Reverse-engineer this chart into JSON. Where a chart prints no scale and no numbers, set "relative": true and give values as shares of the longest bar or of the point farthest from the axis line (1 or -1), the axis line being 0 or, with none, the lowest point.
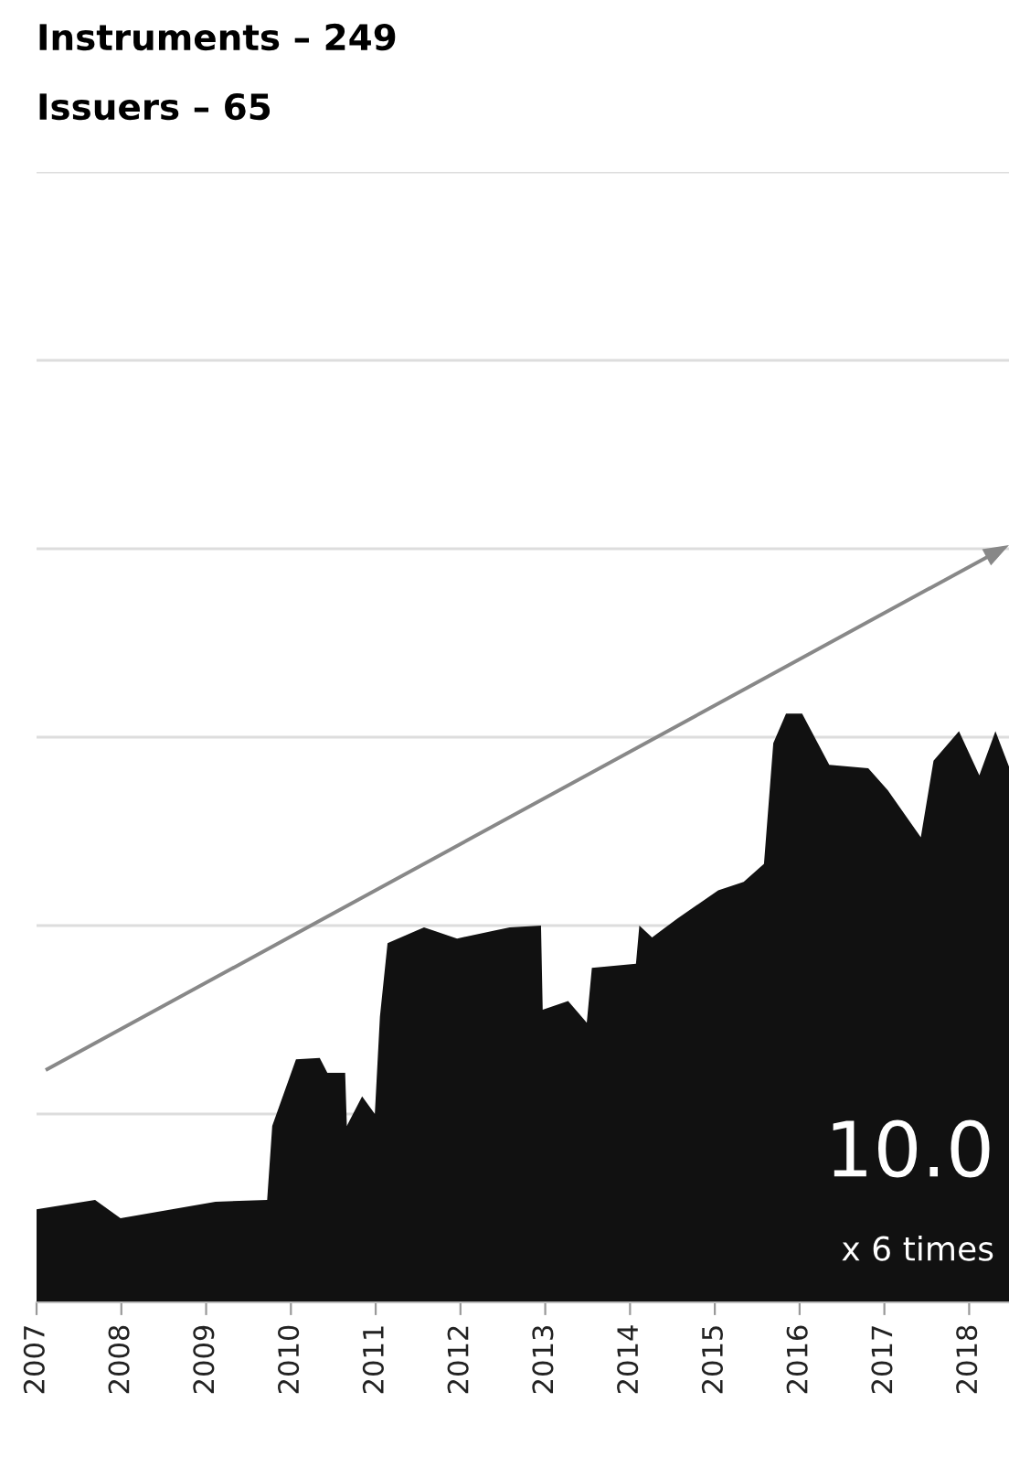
{
  "chart_data": {
    "type": "area",
    "title": "Instruments – 249",
    "subtitle": "Issuers – 65",
    "relative": true,
    "color": "#111111",
    "x": [
      2007.0,
      2007.69,
      2007.99,
      2009.11,
      2009.72,
      2009.78,
      2010.06,
      2010.34,
      2010.43,
      2010.64,
      2010.66,
      2010.84,
      2010.99,
      2011.05,
      2011.14,
      2011.57,
      2011.96,
      2012.58,
      2012.95,
      2012.97,
      2013.27,
      2013.49,
      2013.55,
      2014.07,
      2014.11,
      2014.26,
      2014.56,
      2015.04,
      2015.34,
      2015.58,
      2015.69,
      2015.84,
      2016.03,
      2016.35,
      2016.81,
      2017.04,
      2017.43,
      2017.58,
      2017.88,
      2018.12,
      2018.31,
      2018.47
    ],
    "values": [
      0.158,
      0.174,
      0.143,
      0.171,
      0.174,
      0.3,
      0.413,
      0.415,
      0.39,
      0.39,
      0.3,
      0.35,
      0.32,
      0.485,
      0.61,
      0.637,
      0.618,
      0.637,
      0.64,
      0.497,
      0.512,
      0.475,
      0.568,
      0.575,
      0.64,
      0.62,
      0.652,
      0.7,
      0.714,
      0.745,
      0.95,
      1.0,
      1.0,
      0.913,
      0.907,
      0.87,
      0.79,
      0.92,
      0.97,
      0.895,
      0.97,
      0.91
    ],
    "xlim": [
      2007,
      2018.47
    ],
    "xticks": [
      2007,
      2008,
      2009,
      2010,
      2011,
      2012,
      2013,
      2014,
      2015,
      2016,
      2017,
      2018
    ],
    "grid": "y",
    "tick_labels": "x",
    "annotations": [
      "10.0",
      "x 6 times"
    ]
  }
}
